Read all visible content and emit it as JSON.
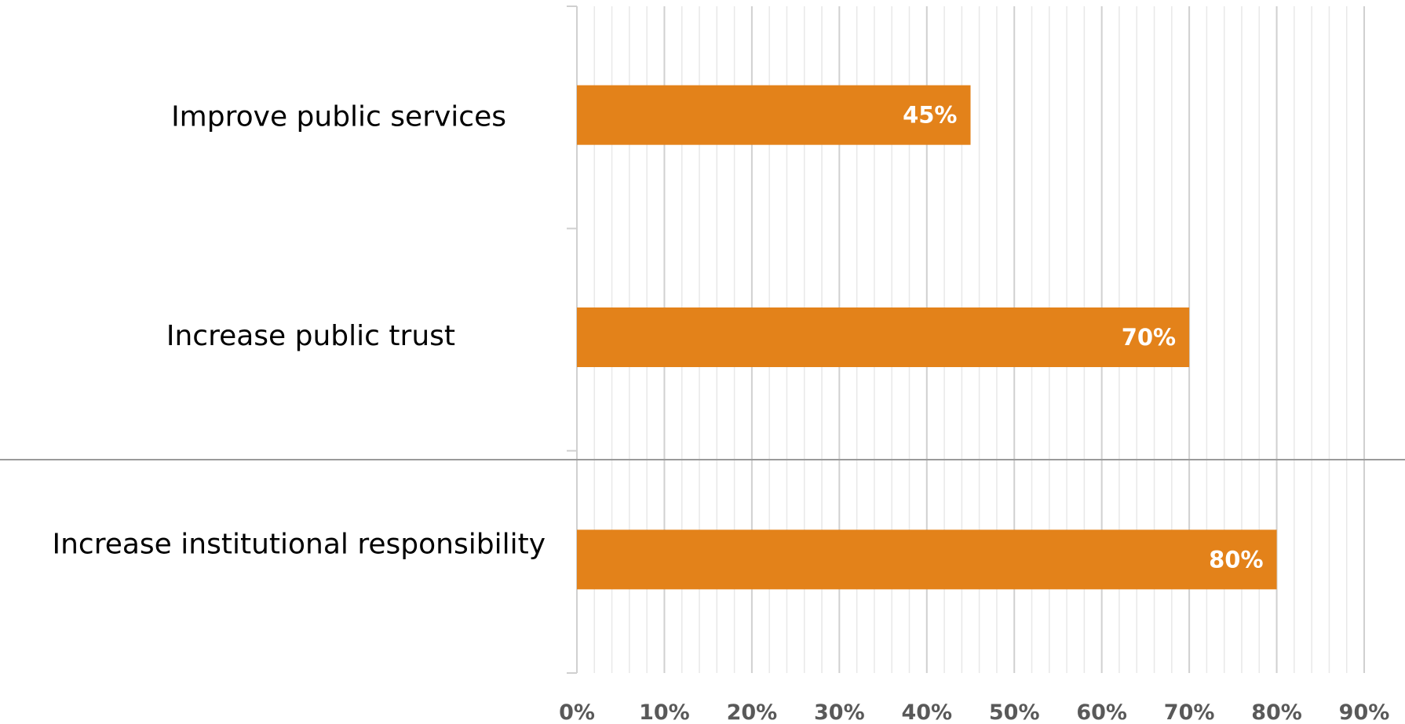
{
  "chart_data": {
    "type": "bar",
    "orientation": "horizontal",
    "categories": [
      "Improve public services",
      "Increase public trust",
      "Increase institutional responsibility"
    ],
    "values": [
      45,
      70,
      80
    ],
    "data_labels": [
      "45%",
      "70%",
      "80%"
    ],
    "x_ticks": [
      "0%",
      "10%",
      "20%",
      "30%",
      "40%",
      "50%",
      "60%",
      "70%",
      "80%",
      "90%"
    ],
    "xlim": [
      0,
      90
    ],
    "x_major_step": 10,
    "x_minor_step": 2,
    "grid": true,
    "legend": "none",
    "bar_color": "#E3821A",
    "title": "",
    "xlabel": "",
    "ylabel": ""
  }
}
